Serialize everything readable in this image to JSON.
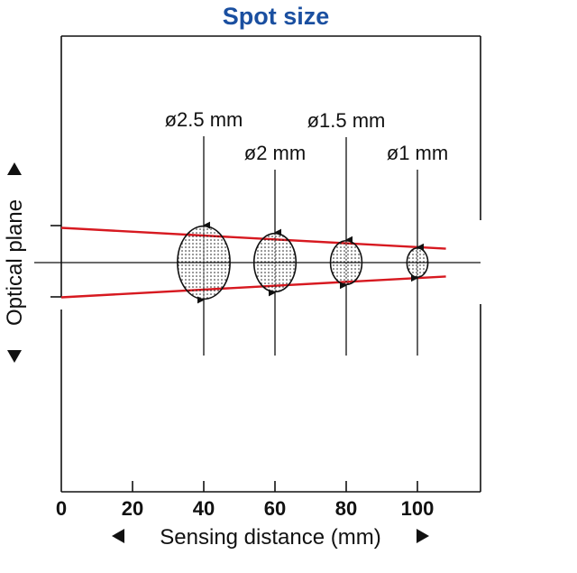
{
  "title": "Spot size",
  "x_axis": {
    "label": "Sensing distance (mm)",
    "ticks": [
      "0",
      "20",
      "40",
      "60",
      "80",
      "100"
    ],
    "tick_values": [
      0,
      20,
      40,
      60,
      80,
      100
    ],
    "range": [
      0,
      118
    ]
  },
  "y_axis": {
    "label": "Optical plane"
  },
  "beam": {
    "color": "#d71920",
    "start_half_width": 2.5,
    "end_distance": 108,
    "end_half_width": 1.0
  },
  "spots": [
    {
      "distance": 40,
      "diameter": 2.5,
      "label": "ø2.5 mm"
    },
    {
      "distance": 60,
      "diameter": 2.0,
      "label": "ø2 mm"
    },
    {
      "distance": 80,
      "diameter": 1.5,
      "label": "ø1.5 mm"
    },
    {
      "distance": 100,
      "diameter": 1.0,
      "label": "ø1 mm"
    }
  ]
}
